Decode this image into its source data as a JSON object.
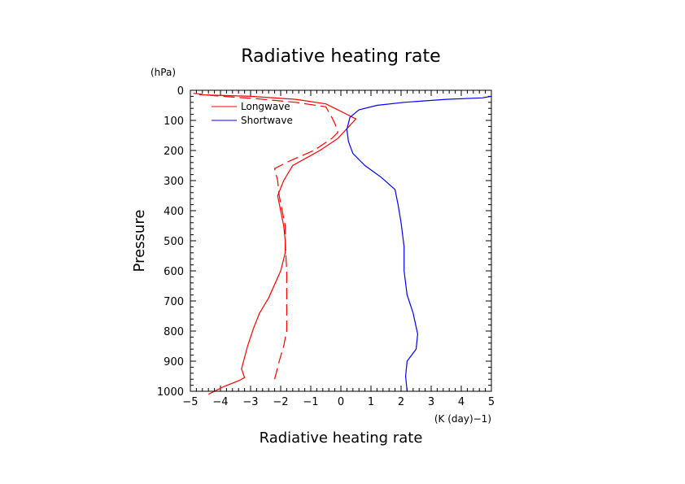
{
  "chart_data": {
    "type": "line",
    "title": "Radiative heating rate",
    "xlabel": "Radiative heating rate",
    "x_unit_label": "(K (day)−1)",
    "ylabel": "Pressure",
    "y_unit_label": "(hPa)",
    "xlim": [
      -5,
      5
    ],
    "ylim": [
      1000,
      0
    ],
    "x_ticks": [
      "−5",
      "−4",
      "−3",
      "−2",
      "−1",
      "0",
      "1",
      "2",
      "3",
      "4",
      "5"
    ],
    "y_ticks": [
      "0",
      "100",
      "200",
      "300",
      "400",
      "500",
      "600",
      "700",
      "800",
      "900",
      "1000"
    ],
    "grid": false,
    "legend_position": "top-left",
    "series": [
      {
        "name": "Longwave",
        "color": "#ff0000",
        "dash": "solid",
        "points": [
          [
            -4.4,
            1010
          ],
          [
            -4.2,
            1000
          ],
          [
            -3.9,
            985
          ],
          [
            -3.4,
            965
          ],
          [
            -3.2,
            955
          ],
          [
            -3.3,
            925
          ],
          [
            -3.1,
            850
          ],
          [
            -2.9,
            790
          ],
          [
            -2.7,
            740
          ],
          [
            -2.4,
            690
          ],
          [
            -2.0,
            600
          ],
          [
            -1.85,
            540
          ],
          [
            -1.85,
            500
          ],
          [
            -1.9,
            450
          ],
          [
            -2.0,
            400
          ],
          [
            -2.1,
            350
          ],
          [
            -1.9,
            300
          ],
          [
            -1.6,
            250
          ],
          [
            -0.7,
            200
          ],
          [
            -0.1,
            160
          ],
          [
            0.5,
            95
          ],
          [
            0.2,
            80
          ],
          [
            -0.2,
            60
          ],
          [
            -0.5,
            45
          ],
          [
            -1.5,
            30
          ],
          [
            -3,
            20
          ],
          [
            -4.7,
            15
          ]
        ]
      },
      {
        "name": "",
        "color": "#ff0000",
        "dash": "dashed",
        "points": [
          [
            -2.2,
            960
          ],
          [
            -2.05,
            900
          ],
          [
            -1.9,
            850
          ],
          [
            -1.8,
            800
          ],
          [
            -1.8,
            750
          ],
          [
            -1.8,
            700
          ],
          [
            -1.8,
            600
          ],
          [
            -1.85,
            500
          ],
          [
            -1.85,
            450
          ],
          [
            -1.95,
            400
          ],
          [
            -2.05,
            350
          ],
          [
            -2.1,
            300
          ],
          [
            -2.2,
            260
          ],
          [
            -1.7,
            235
          ],
          [
            -0.9,
            200
          ],
          [
            -0.3,
            160
          ],
          [
            -0.1,
            140
          ],
          [
            -0.2,
            110
          ],
          [
            -0.3,
            90
          ],
          [
            -0.5,
            55
          ],
          [
            -1.5,
            40
          ],
          [
            -2.8,
            28
          ],
          [
            -4.2,
            18
          ],
          [
            -4.9,
            10
          ]
        ]
      },
      {
        "name": "Shortwave",
        "color": "#0000ff",
        "dash": "solid",
        "points": [
          [
            2.2,
            1000
          ],
          [
            2.15,
            950
          ],
          [
            2.2,
            900
          ],
          [
            2.5,
            860
          ],
          [
            2.55,
            810
          ],
          [
            2.4,
            740
          ],
          [
            2.2,
            680
          ],
          [
            2.1,
            600
          ],
          [
            2.1,
            520
          ],
          [
            2.0,
            440
          ],
          [
            1.9,
            380
          ],
          [
            1.8,
            330
          ],
          [
            1.35,
            290
          ],
          [
            0.8,
            250
          ],
          [
            0.4,
            210
          ],
          [
            0.25,
            170
          ],
          [
            0.2,
            130
          ],
          [
            0.3,
            90
          ],
          [
            0.6,
            65
          ],
          [
            1.2,
            50
          ],
          [
            2.1,
            40
          ],
          [
            3.5,
            30
          ],
          [
            4.7,
            25
          ],
          [
            5.0,
            20
          ]
        ]
      }
    ]
  }
}
